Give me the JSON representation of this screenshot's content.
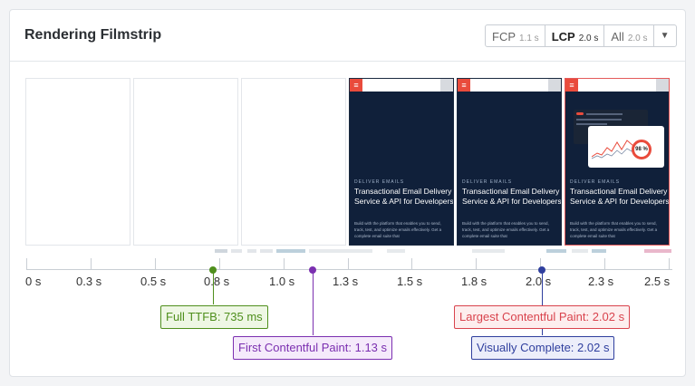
{
  "header": {
    "title": "Rendering Filmstrip"
  },
  "toggle": {
    "buttons": [
      {
        "label": "FCP",
        "time": "1.1 s"
      },
      {
        "label": "LCP",
        "time": "2.0 s"
      },
      {
        "label": "All",
        "time": "2.0 s"
      }
    ],
    "selected": "LCP",
    "dropdown_icon": "caret-down-icon"
  },
  "screenshot": {
    "menu_icon": "hamburger-menu-icon",
    "eyebrow": "DELIVER EMAILS",
    "headline": "Transactional Email Delivery Service & API for Developers",
    "body": "Build with the platform that enables you to send, track, test, and optimize emails effectively. Get a complete email suite that",
    "ring_value": "98 %"
  },
  "timeline": {
    "ticks": [
      "0 s",
      "0.3 s",
      "0.5 s",
      "0.8 s",
      "1.0 s",
      "1.3 s",
      "1.5 s",
      "1.8 s",
      "2.0 s",
      "2.3 s",
      "2.5 s"
    ]
  },
  "markers": {
    "ttfb": {
      "label": "Full TTFB: 735 ms",
      "color": "#4f8f1d",
      "bg": "#eef7e4"
    },
    "fcp": {
      "label": "First Contentful Paint: 1.13 s",
      "color": "#7b2fb0",
      "bg": "#f5eafb"
    },
    "lcp": {
      "label": "Largest Contentful Paint: 2.02 s",
      "color": "#d9434d",
      "bg": "#fdeeee"
    },
    "vc": {
      "label": "Visually Complete: 2.02 s",
      "color": "#2f3f9e",
      "bg": "#eceefa"
    }
  }
}
